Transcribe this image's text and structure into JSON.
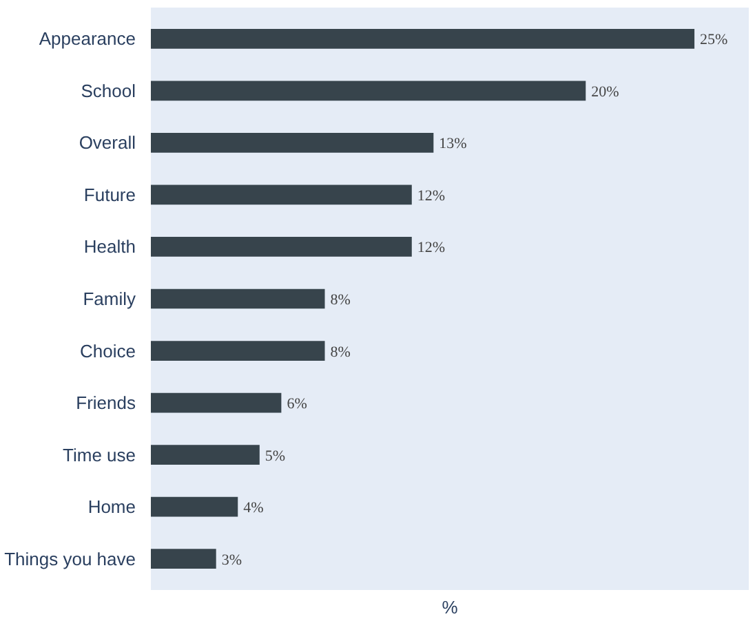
{
  "chart_data": {
    "type": "bar",
    "orientation": "horizontal",
    "xlabel": "%",
    "categories": [
      "Appearance",
      "School",
      "Overall",
      "Future",
      "Health",
      "Family",
      "Choice",
      "Friends",
      "Time use",
      "Home",
      "Things you have"
    ],
    "values": [
      25,
      20,
      13,
      12,
      12,
      8,
      8,
      6,
      5,
      4,
      3
    ],
    "value_labels": [
      "25%",
      "20%",
      "13%",
      "12%",
      "12%",
      "8%",
      "8%",
      "6%",
      "5%",
      "4%",
      "3%"
    ],
    "color": "#37444c",
    "xlim": [
      0,
      27.5
    ],
    "grid": false,
    "tick_labels": "y"
  }
}
